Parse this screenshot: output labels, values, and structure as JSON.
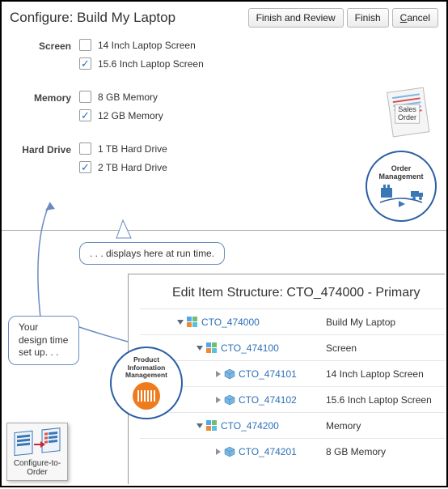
{
  "config": {
    "title": "Configure: Build My Laptop",
    "buttons": {
      "finish_review": "Finish and Review",
      "finish": "Finish",
      "cancel": "Cancel"
    },
    "groups": [
      {
        "label": "Screen",
        "items": [
          {
            "text": "14 Inch Laptop Screen",
            "checked": false
          },
          {
            "text": "15.6 Inch Laptop Screen",
            "checked": true
          }
        ]
      },
      {
        "label": "Memory",
        "items": [
          {
            "text": "8 GB Memory",
            "checked": false
          },
          {
            "text": "12 GB Memory",
            "checked": true
          }
        ]
      },
      {
        "label": "Hard Drive",
        "items": [
          {
            "text": "1 TB Hard Drive",
            "checked": false
          },
          {
            "text": "2 TB Hard Drive",
            "checked": true
          }
        ]
      }
    ]
  },
  "sales_order_label": "Sales Order",
  "order_mgmt_label": "Order Management",
  "callouts": {
    "runtime": ". . . displays here at run time.",
    "design": "Your design time set up. . ."
  },
  "pim_label": "Product Information Management",
  "cto_label": "Configure-to-Order",
  "edit": {
    "title": "Edit Item Structure: CTO_474000 - Primary",
    "rows": [
      {
        "indent": 0,
        "disclosure": "down",
        "icon": "model",
        "code": "CTO_474000",
        "desc": "Build My Laptop"
      },
      {
        "indent": 1,
        "disclosure": "down",
        "icon": "model",
        "code": "CTO_474100",
        "desc": "Screen"
      },
      {
        "indent": 2,
        "disclosure": "right",
        "icon": "cube",
        "code": "CTO_474101",
        "desc": "14 Inch Laptop Screen"
      },
      {
        "indent": 2,
        "disclosure": "right",
        "icon": "cube",
        "code": "CTO_474102",
        "desc": "15.6 Inch Laptop Screen"
      },
      {
        "indent": 1,
        "disclosure": "down",
        "icon": "model",
        "code": "CTO_474200",
        "desc": "Memory"
      },
      {
        "indent": 2,
        "disclosure": "right",
        "icon": "cube",
        "code": "CTO_474201",
        "desc": "8 GB Memory"
      }
    ]
  },
  "colors": {
    "link": "#2d70b7",
    "accent": "#2b5fa4",
    "check": "#1e6fc0",
    "pim_orange": "#ee7b1d"
  }
}
